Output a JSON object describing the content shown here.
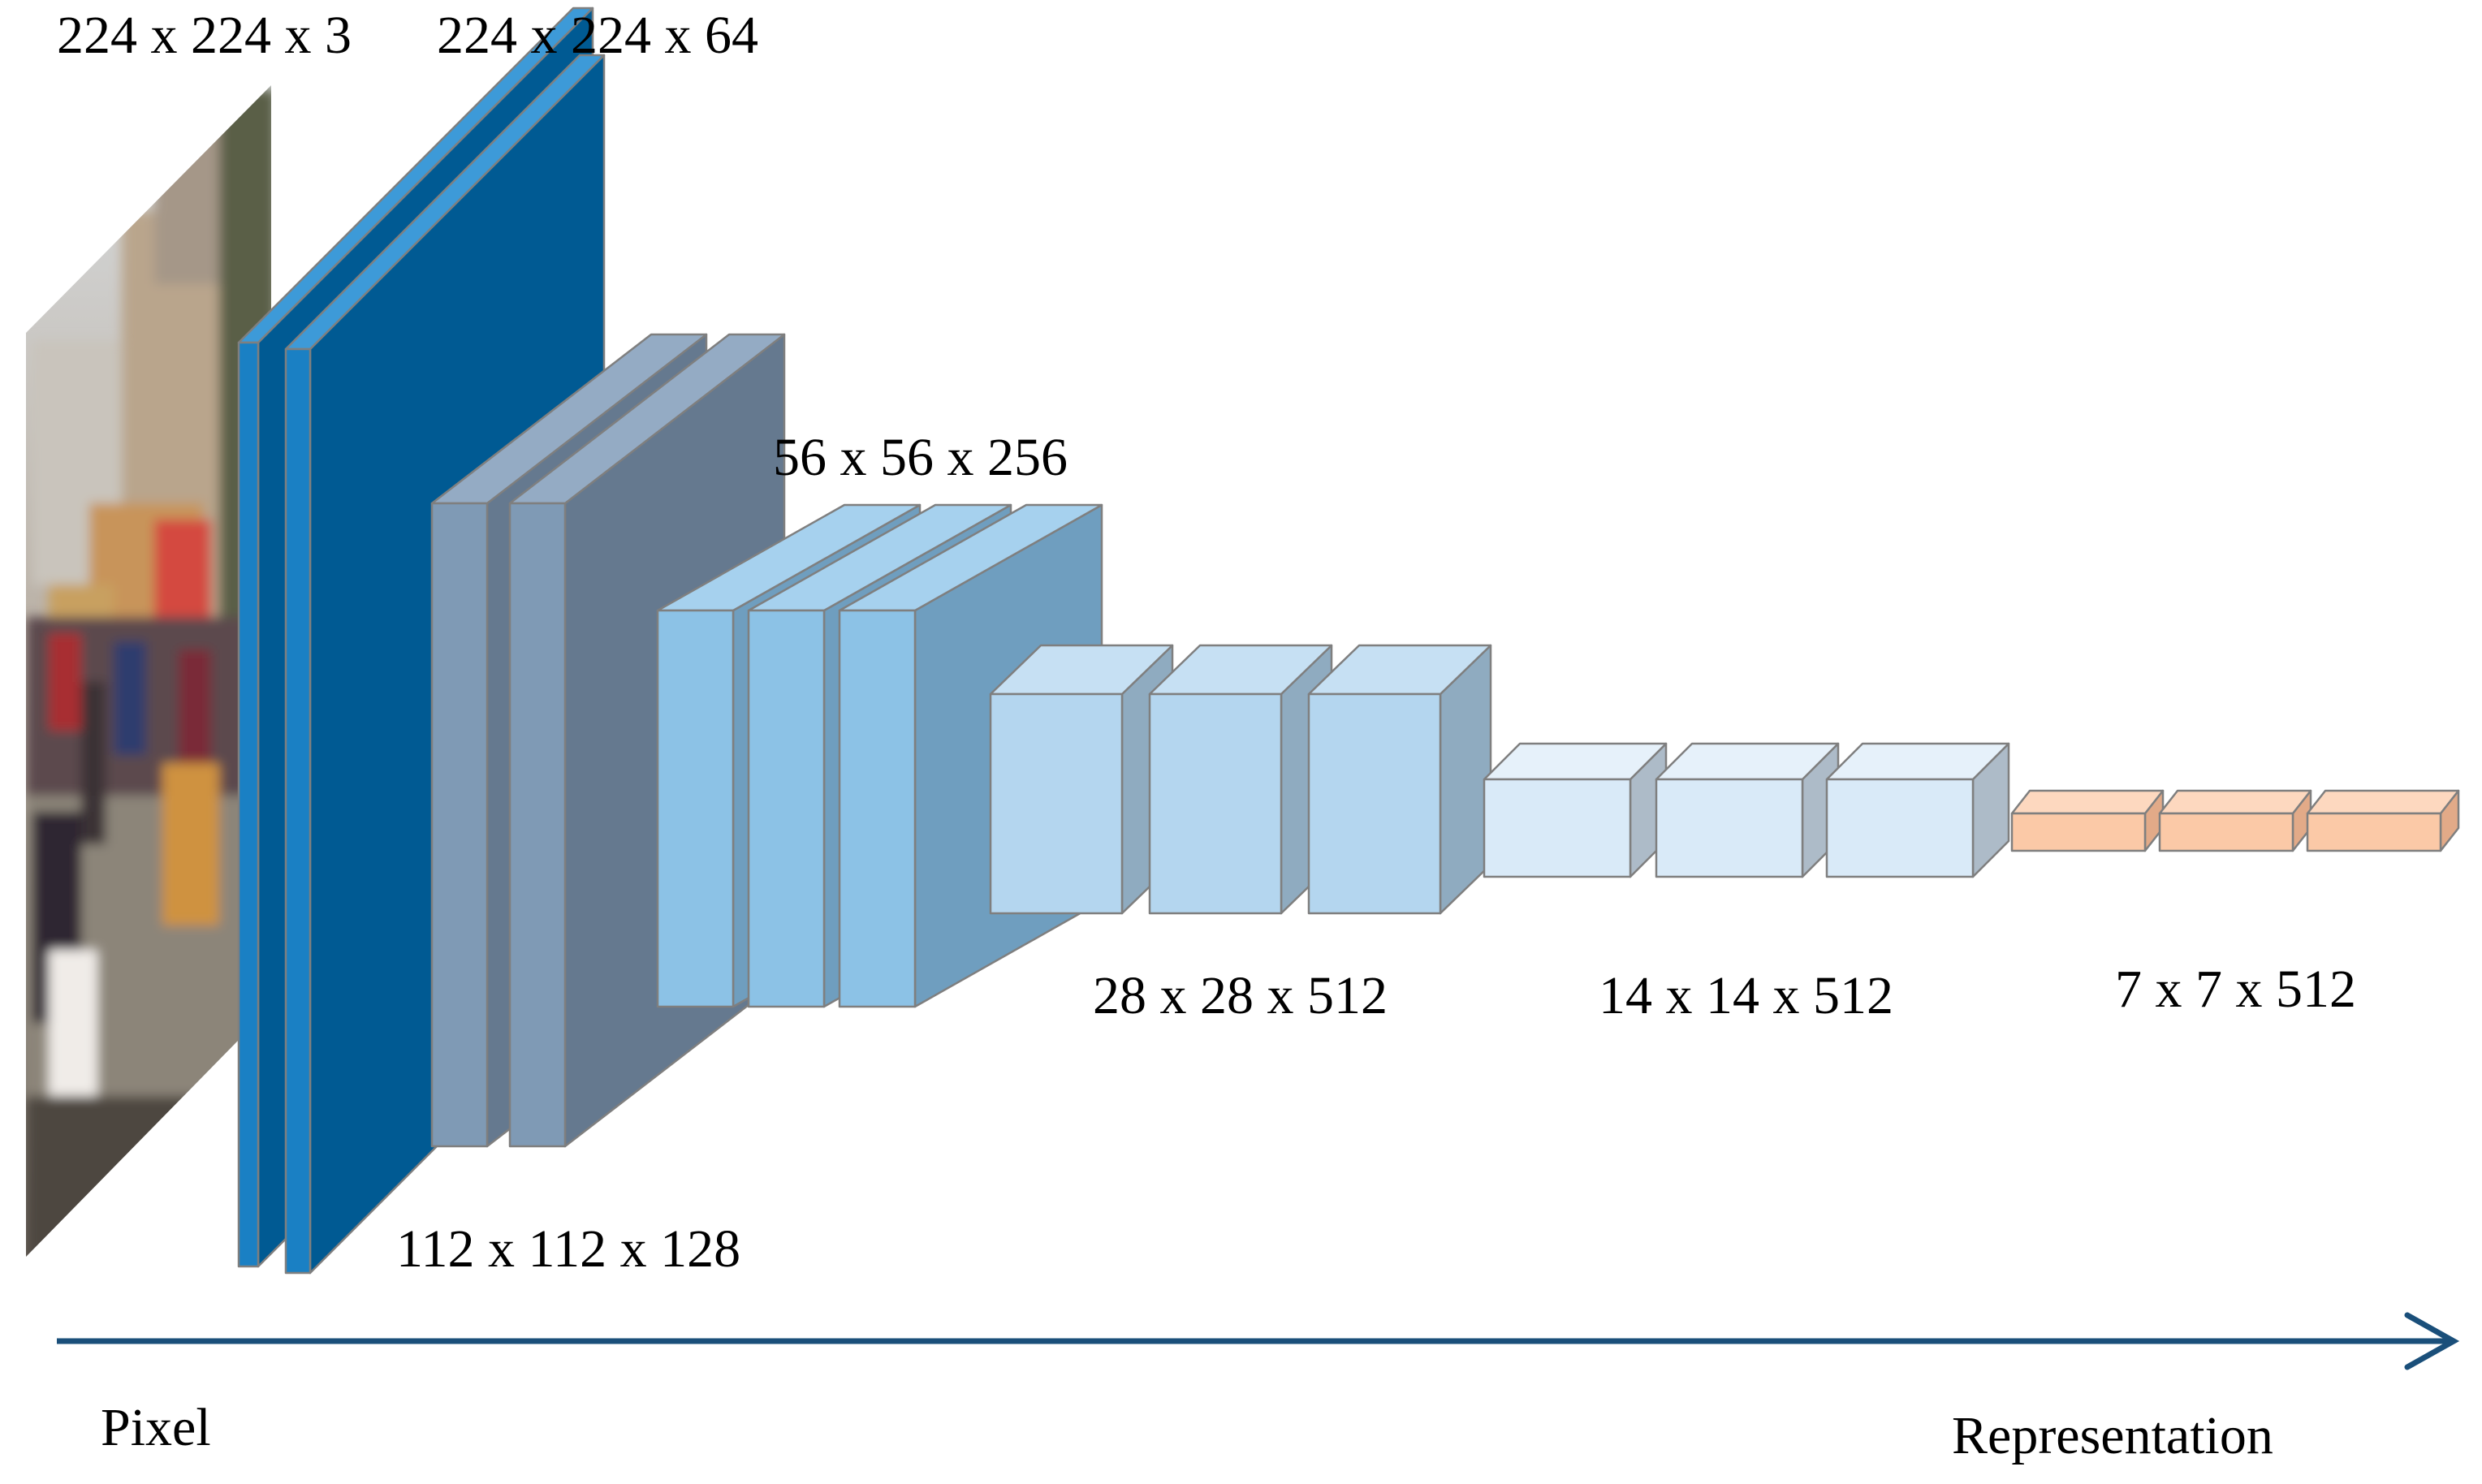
{
  "labels": {
    "input": "224 x 224 x 3",
    "conv1": "224 x 224 x 64",
    "conv2": "112 x 112 x 128",
    "conv3": "56 x 56 x 256",
    "conv4": "28 x 28 x 512",
    "conv5": "14 x 14 x 512",
    "pool5": "7 x 7 x 512",
    "axis_start": "Pixel",
    "axis_end": "Representation"
  },
  "colors": {
    "conv1_front": "#1a80c4",
    "conv1_top": "#3d9ad8",
    "conv1_side": "#005a93",
    "conv2_front": "#7f9ab5",
    "conv2_top": "#94abc4",
    "conv2_side": "#65798f",
    "conv3_front": "#8cc2e6",
    "conv3_top": "#a6d1ee",
    "conv3_side": "#6f9ebf",
    "conv4_front": "#b4d6ef",
    "conv4_top": "#c6e0f3",
    "conv4_side": "#8fabc0",
    "conv5_front": "#d9eaf8",
    "conv5_top": "#e6f1fa",
    "conv5_side": "#adbbc8",
    "pool5_front": "#fbc9a7",
    "pool5_top": "#fdd8bf",
    "pool5_side": "#e2aa88",
    "arrow": "#1a4f7a"
  }
}
